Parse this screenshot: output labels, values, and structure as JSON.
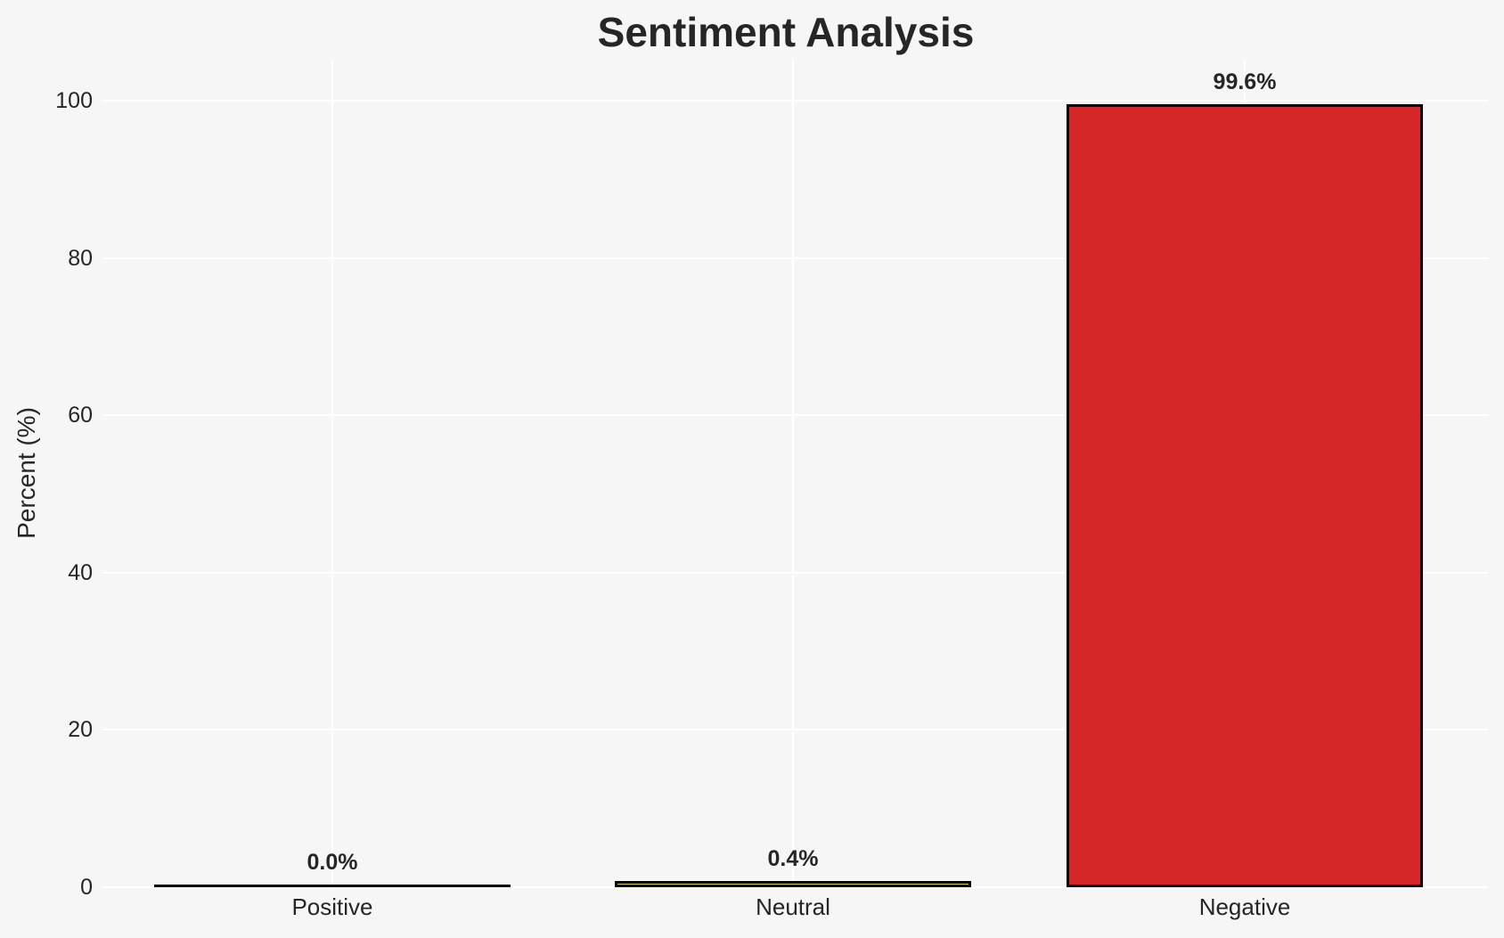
{
  "chart_data": {
    "type": "bar",
    "title": "Sentiment Analysis",
    "ylabel": "Percent (%)",
    "xlabel": "",
    "categories": [
      "Positive",
      "Neutral",
      "Negative"
    ],
    "values": [
      0.0,
      0.4,
      99.6
    ],
    "value_labels": [
      "0.0%",
      "0.4%",
      "99.6%"
    ],
    "yticks": [
      "0",
      "20",
      "40",
      "60",
      "80",
      "100"
    ],
    "ylim": [
      0,
      105
    ],
    "grid": true,
    "legend_position": "none",
    "colors": {
      "figure_background": "#f6f6f7",
      "gridline": "#ffffff",
      "bar_edge": "#000000",
      "positive_fill": null,
      "neutral_fill": "#e0d45c",
      "negative_fill": "#d62728",
      "text": "#262626"
    }
  }
}
